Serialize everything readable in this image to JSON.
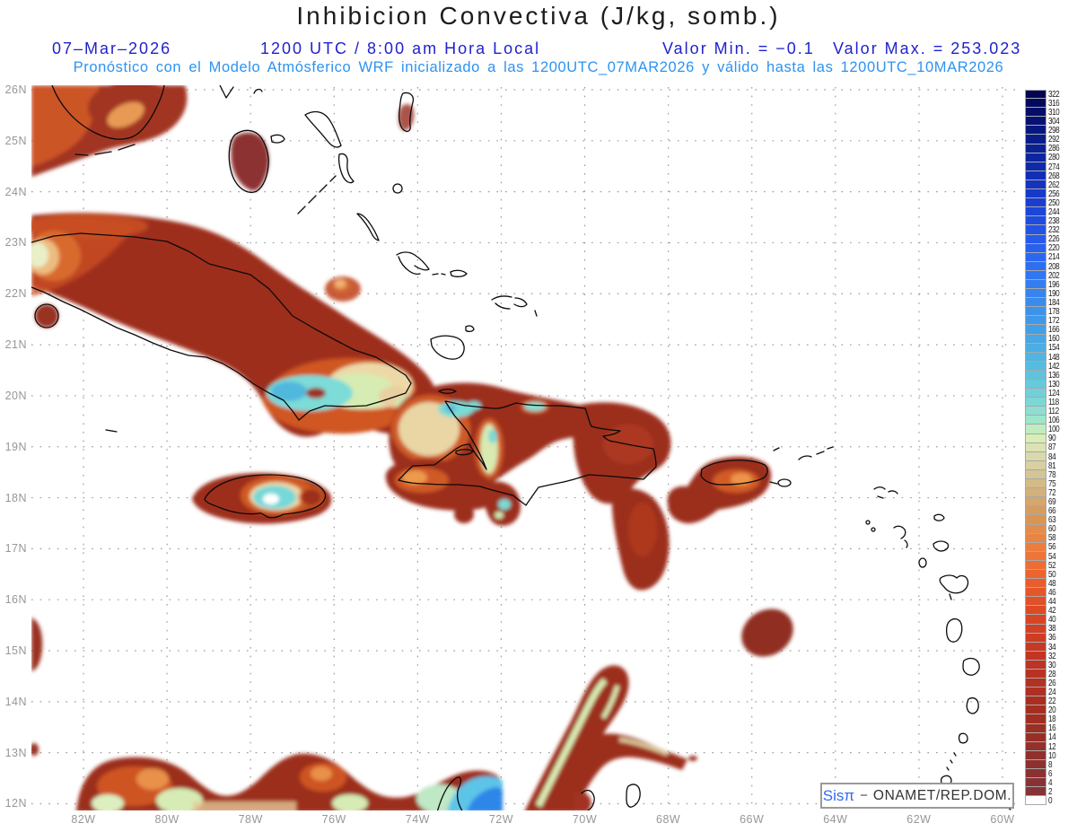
{
  "header": {
    "title": "Inhibicion Convectiva (J/kg, somb.)",
    "date": "07–Mar–2026",
    "time": "1200 UTC / 8:00 am Hora Local",
    "min_label": "Valor Min. = −0.1",
    "max_label": "Valor Max. = 253.023",
    "forecast_line": "Pronóstico con el Modelo Atmósferico WRF inicializado a las 1200UTC_07MAR2026 y válido hasta las  1200UTC_10MAR2026"
  },
  "map": {
    "lat_labels": [
      "26N",
      "25N",
      "24N",
      "23N",
      "22N",
      "21N",
      "20N",
      "19N",
      "18N",
      "17N",
      "16N",
      "15N",
      "14N",
      "13N",
      "12N"
    ],
    "lon_labels": [
      "82W",
      "80W",
      "78W",
      "76W",
      "74W",
      "72W",
      "70W",
      "68W",
      "66W",
      "64W",
      "62W",
      "60W"
    ],
    "grid_color": "#9a9a9a",
    "coast_color": "#0a0a0a",
    "regions": [
      "Florida",
      "Bahamas (Andros)",
      "Cuba",
      "Isla de la Juventud",
      "Jamaica",
      "Hispaniola",
      "Puerto Rico",
      "Antillas Menores",
      "Costa norte de Sudamerica"
    ]
  },
  "colorbar": {
    "levels": [
      322,
      316,
      310,
      304,
      298,
      292,
      286,
      280,
      274,
      268,
      262,
      256,
      250,
      244,
      238,
      232,
      226,
      220,
      214,
      208,
      202,
      196,
      190,
      184,
      178,
      172,
      166,
      160,
      154,
      148,
      142,
      136,
      130,
      124,
      118,
      112,
      106,
      100,
      90,
      87,
      84,
      81,
      78,
      75,
      72,
      69,
      66,
      63,
      60,
      58,
      56,
      54,
      52,
      50,
      48,
      46,
      44,
      42,
      40,
      38,
      36,
      34,
      32,
      30,
      28,
      26,
      24,
      22,
      20,
      18,
      16,
      14,
      12,
      10,
      8,
      6,
      4,
      2,
      0
    ],
    "colors": [
      "#020553",
      "#03095E",
      "#040E69",
      "#051274",
      "#06177F",
      "#081C8A",
      "#0A2095",
      "#0C25A0",
      "#0E2AAB",
      "#102FB5",
      "#1334BF",
      "#1639C8",
      "#193ED1",
      "#1C45D9",
      "#1F4CE0",
      "#2253E6",
      "#255AEB",
      "#2861EF",
      "#2B68F1",
      "#2E6FF2",
      "#3176F2",
      "#347DF1",
      "#3784EF",
      "#3A8BED",
      "#3D92EB",
      "#4099E8",
      "#44A0E6",
      "#48A7E4",
      "#4CAEE2",
      "#50B5E0",
      "#56BCDF",
      "#5EC3DE",
      "#66CADC",
      "#70D1DA",
      "#7CD8D6",
      "#8CDFD2",
      "#9EE6CB",
      "#BFEDC0",
      "#D9EDB5",
      "#DBE3B2",
      "#DAD9AC",
      "#D8CFA2",
      "#D5C595",
      "#D3BB88",
      "#D2B17B",
      "#D3A76E",
      "#D69D60",
      "#DB9553",
      "#E28D4A",
      "#E88544",
      "#EC7D3E",
      "#EE7538",
      "#EE6D33",
      "#EC652F",
      "#E95D2C",
      "#E55629",
      "#E15027",
      "#DC4A26",
      "#D74525",
      "#D24025",
      "#CD3C24",
      "#C83824",
      "#C33523",
      "#BE3323",
      "#B93122",
      "#B43021",
      "#AF2F21",
      "#AA2E20",
      "#A52E20",
      "#A02E21",
      "#9C2F23",
      "#982F26",
      "#943029",
      "#90302C",
      "#8D312F",
      "#8A3132",
      "#883234",
      "#863336",
      "#FFFFFF"
    ],
    "border_color": "#a8a8a8"
  },
  "legend": {
    "brand": "Sisπ",
    "separator": "−",
    "org": "ONAMET/REP.DOM.",
    "brand_color": "#2f6bf2"
  }
}
